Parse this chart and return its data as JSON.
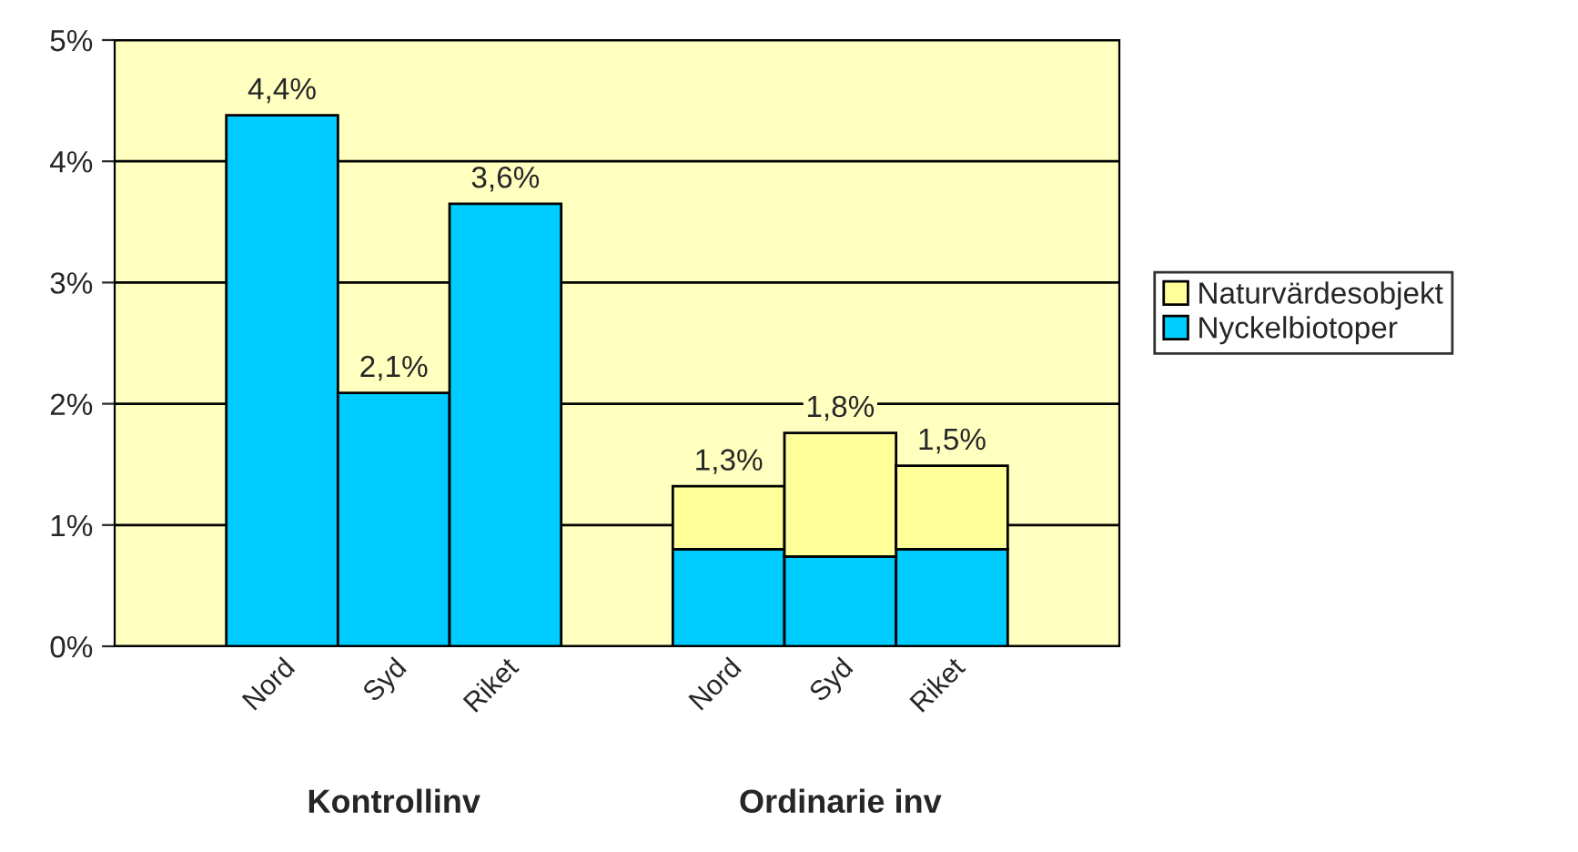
{
  "chart_data": {
    "type": "bar",
    "stacked": true,
    "categories": [
      null,
      "Nord",
      "Syd",
      "Riket",
      null,
      "Nord",
      "Syd",
      "Riket",
      null
    ],
    "series": [
      {
        "name": "Nyckelbiotoper",
        "color": "#00ccff",
        "values": [
          null,
          4.38,
          2.09,
          3.65,
          null,
          0.8,
          0.74,
          0.8,
          null
        ]
      },
      {
        "name": "Naturvärdesobjekt",
        "color": "#ffff99",
        "values": [
          null,
          null,
          null,
          null,
          null,
          0.52,
          1.02,
          0.69,
          null
        ]
      }
    ],
    "totals": [
      null,
      "4,4%",
      "2,1%",
      "3,6%",
      null,
      "1,3%",
      "1,8%",
      "1,5%",
      null
    ],
    "ylim": [
      0,
      5
    ],
    "yticks": [
      {
        "value": 0,
        "label": "0%"
      },
      {
        "value": 1,
        "label": "1%"
      },
      {
        "value": 2,
        "label": "2%"
      },
      {
        "value": 3,
        "label": "3%"
      },
      {
        "value": 4,
        "label": "4%"
      },
      {
        "value": 5,
        "label": "5%"
      }
    ],
    "grid": "y",
    "legend": "right",
    "annotations": [
      "Kontrollinv",
      "Ordinarie inv"
    ]
  }
}
